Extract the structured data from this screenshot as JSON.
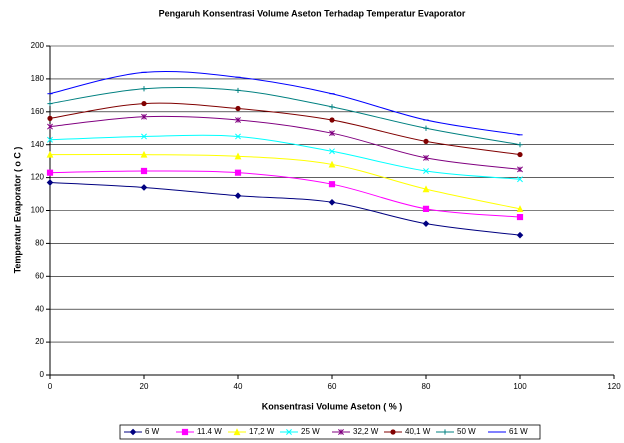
{
  "chart_data": {
    "type": "line",
    "title": "Pengaruh Konsentrasi Volume Aseton Terhadap Temperatur Evaporator",
    "x_label": "Konsentrasi Volume Aseton ( % )",
    "y_label": "Temperatur Evaporator ( o C )",
    "x": [
      0,
      20,
      40,
      60,
      80,
      100
    ],
    "series": [
      {
        "name": "6 W",
        "color": "#000080",
        "marker": "diamond",
        "values": [
          117,
          114,
          109,
          105,
          92,
          85
        ]
      },
      {
        "name": "11.4 W",
        "color": "#ff00ff",
        "marker": "square",
        "values": [
          123,
          124,
          123,
          116,
          101,
          96
        ]
      },
      {
        "name": "17,2 W",
        "color": "#ffff00",
        "marker": "triangle",
        "values": [
          134,
          134,
          133,
          128,
          113,
          101
        ]
      },
      {
        "name": "25 W",
        "color": "#00ffff",
        "marker": "x",
        "values": [
          143,
          145,
          145,
          136,
          124,
          119
        ]
      },
      {
        "name": "32,2 W",
        "color": "#800080",
        "marker": "star",
        "values": [
          151,
          157,
          155,
          147,
          132,
          125
        ]
      },
      {
        "name": "40,1 W",
        "color": "#800000",
        "marker": "circle",
        "values": [
          156,
          165,
          162,
          155,
          142,
          134
        ]
      },
      {
        "name": "50 W",
        "color": "#008080",
        "marker": "plus",
        "values": [
          165,
          174,
          173,
          163,
          150,
          140
        ]
      },
      {
        "name": "61 W",
        "color": "#0000ff",
        "marker": "dash",
        "values": [
          171,
          184,
          181,
          171,
          155,
          146
        ]
      }
    ],
    "xlim": [
      0,
      120
    ],
    "xticks": [
      0,
      20,
      40,
      60,
      80,
      100,
      120
    ],
    "ylim": [
      0,
      200
    ],
    "yticks": [
      0,
      20,
      40,
      60,
      80,
      100,
      120,
      140,
      160,
      180,
      200
    ],
    "grid": true,
    "smooth": true,
    "legend": "bottom"
  }
}
